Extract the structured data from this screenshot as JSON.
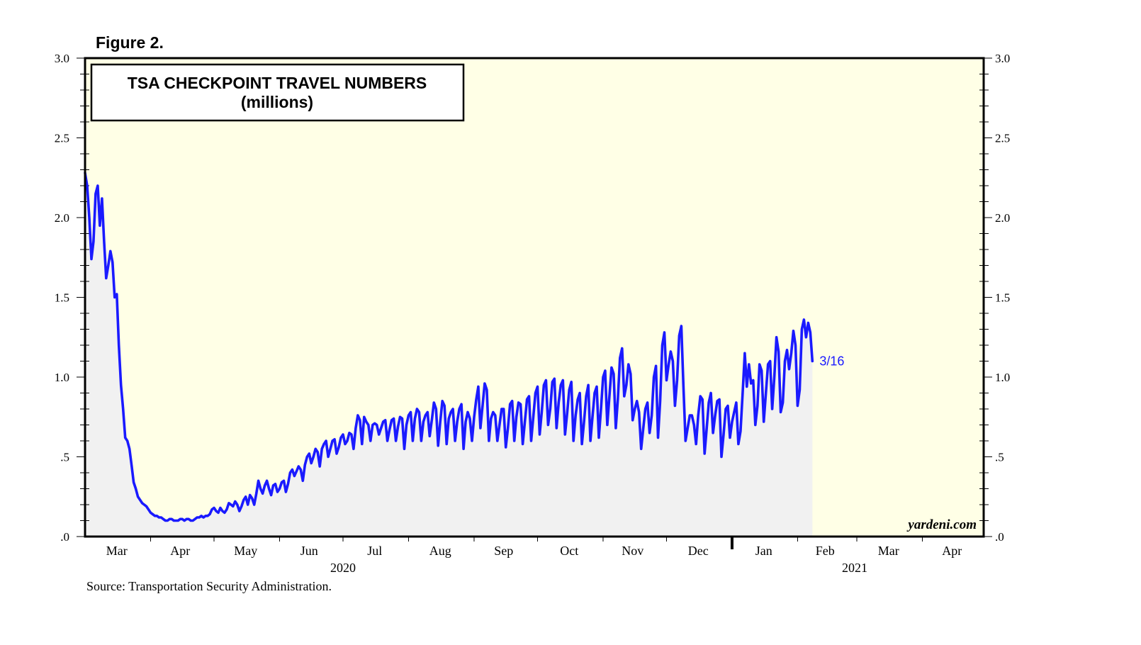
{
  "figure_label": "Figure 2.",
  "source": "Source: Transportation Security Administration.",
  "watermark": "yardeni.com",
  "colors": {
    "plot_background": "#ffffe6",
    "area_fill": "#f1f1f1",
    "line": "#1a1aff",
    "frame": "#000000"
  },
  "chart_data": {
    "type": "line",
    "title": "TSA CHECKPOINT TRAVEL NUMBERS",
    "subtitle": "(millions)",
    "ylabel": "",
    "xlabel": "",
    "ylim": [
      0,
      3.0
    ],
    "y_ticks": [
      ".0",
      ".5",
      "1.0",
      "1.5",
      "2.0",
      "2.5",
      "3.0"
    ],
    "y_tick_values": [
      0,
      0.5,
      1.0,
      1.5,
      2.0,
      2.5,
      3.0
    ],
    "x_start": "2020-03-01",
    "x_end": "2021-04-30",
    "month_labels": [
      {
        "label": "Mar",
        "date": "2020-03-16"
      },
      {
        "label": "Apr",
        "date": "2020-04-15"
      },
      {
        "label": "May",
        "date": "2020-05-16"
      },
      {
        "label": "Jun",
        "date": "2020-06-15"
      },
      {
        "label": "Jul",
        "date": "2020-07-16"
      },
      {
        "label": "Aug",
        "date": "2020-08-16"
      },
      {
        "label": "Sep",
        "date": "2020-09-15"
      },
      {
        "label": "Oct",
        "date": "2020-10-16"
      },
      {
        "label": "Nov",
        "date": "2020-11-15"
      },
      {
        "label": "Dec",
        "date": "2020-12-16"
      },
      {
        "label": "Jan",
        "date": "2021-01-16"
      },
      {
        "label": "Feb",
        "date": "2021-02-14"
      },
      {
        "label": "Mar",
        "date": "2021-03-16"
      },
      {
        "label": "Apr",
        "date": "2021-04-15"
      }
    ],
    "year_labels": [
      {
        "label": "2020",
        "date": "2020-07-01"
      },
      {
        "label": "2021",
        "date": "2021-02-28"
      }
    ],
    "year_divider_date": "2021-01-01",
    "last_point_label": "3/16",
    "series": [
      {
        "name": "TSA checkpoint travel numbers",
        "start_date": "2020-03-01",
        "values": [
          2.28,
          2.2,
          2.0,
          1.74,
          1.85,
          2.15,
          2.2,
          1.95,
          2.12,
          1.85,
          1.62,
          1.7,
          1.79,
          1.72,
          1.5,
          1.52,
          1.2,
          0.95,
          0.8,
          0.62,
          0.6,
          0.55,
          0.45,
          0.34,
          0.3,
          0.25,
          0.23,
          0.21,
          0.2,
          0.19,
          0.17,
          0.15,
          0.14,
          0.13,
          0.13,
          0.12,
          0.12,
          0.11,
          0.1,
          0.1,
          0.11,
          0.11,
          0.1,
          0.1,
          0.1,
          0.11,
          0.11,
          0.1,
          0.11,
          0.11,
          0.1,
          0.1,
          0.11,
          0.12,
          0.12,
          0.13,
          0.12,
          0.13,
          0.13,
          0.14,
          0.17,
          0.18,
          0.16,
          0.15,
          0.18,
          0.16,
          0.15,
          0.17,
          0.21,
          0.2,
          0.19,
          0.22,
          0.2,
          0.16,
          0.19,
          0.23,
          0.25,
          0.2,
          0.26,
          0.24,
          0.2,
          0.27,
          0.35,
          0.3,
          0.27,
          0.32,
          0.35,
          0.3,
          0.26,
          0.32,
          0.33,
          0.28,
          0.3,
          0.34,
          0.35,
          0.28,
          0.33,
          0.4,
          0.42,
          0.38,
          0.41,
          0.44,
          0.42,
          0.35,
          0.45,
          0.5,
          0.52,
          0.46,
          0.5,
          0.55,
          0.53,
          0.44,
          0.55,
          0.58,
          0.6,
          0.5,
          0.55,
          0.6,
          0.61,
          0.52,
          0.56,
          0.62,
          0.64,
          0.58,
          0.6,
          0.65,
          0.64,
          0.55,
          0.68,
          0.76,
          0.73,
          0.58,
          0.75,
          0.72,
          0.7,
          0.6,
          0.7,
          0.71,
          0.7,
          0.64,
          0.68,
          0.72,
          0.73,
          0.6,
          0.67,
          0.73,
          0.74,
          0.6,
          0.69,
          0.75,
          0.74,
          0.55,
          0.7,
          0.76,
          0.78,
          0.6,
          0.74,
          0.8,
          0.78,
          0.6,
          0.72,
          0.76,
          0.78,
          0.63,
          0.73,
          0.84,
          0.8,
          0.57,
          0.72,
          0.85,
          0.82,
          0.58,
          0.74,
          0.78,
          0.8,
          0.6,
          0.72,
          0.8,
          0.83,
          0.55,
          0.72,
          0.78,
          0.74,
          0.6,
          0.75,
          0.86,
          0.94,
          0.68,
          0.82,
          0.96,
          0.92,
          0.6,
          0.74,
          0.78,
          0.76,
          0.6,
          0.7,
          0.8,
          0.8,
          0.56,
          0.68,
          0.83,
          0.85,
          0.6,
          0.75,
          0.84,
          0.83,
          0.58,
          0.72,
          0.86,
          0.88,
          0.6,
          0.75,
          0.9,
          0.94,
          0.64,
          0.78,
          0.95,
          0.98,
          0.7,
          0.8,
          0.97,
          0.99,
          0.68,
          0.84,
          0.95,
          0.98,
          0.64,
          0.77,
          0.92,
          0.97,
          0.6,
          0.76,
          0.86,
          0.9,
          0.58,
          0.72,
          0.88,
          0.95,
          0.6,
          0.75,
          0.9,
          0.94,
          0.62,
          0.8,
          1.0,
          1.04,
          0.7,
          0.88,
          1.06,
          1.02,
          0.68,
          0.86,
          1.12,
          1.18,
          0.88,
          0.95,
          1.08,
          1.02,
          0.73,
          0.8,
          0.85,
          0.78,
          0.55,
          0.68,
          0.8,
          0.84,
          0.65,
          0.76,
          1.0,
          1.07,
          0.62,
          0.85,
          1.2,
          1.28,
          0.98,
          1.08,
          1.16,
          1.1,
          0.82,
          0.98,
          1.26,
          1.32,
          0.95,
          0.6,
          0.68,
          0.76,
          0.76,
          0.7,
          0.58,
          0.76,
          0.88,
          0.86,
          0.52,
          0.68,
          0.84,
          0.9,
          0.65,
          0.76,
          0.85,
          0.86,
          0.5,
          0.64,
          0.8,
          0.82,
          0.62,
          0.72,
          0.78,
          0.84,
          0.58,
          0.66,
          0.9,
          1.15,
          0.94,
          1.08,
          0.96,
          0.98,
          0.7,
          0.82,
          1.08,
          1.04,
          0.72,
          0.9,
          1.08,
          1.1,
          0.8,
          1.0,
          1.25,
          1.16,
          0.78,
          0.84,
          1.1,
          1.17,
          1.05,
          1.15,
          1.29,
          1.2,
          0.82,
          0.92,
          1.3,
          1.36,
          1.25,
          1.34,
          1.28,
          1.1
        ]
      }
    ]
  }
}
